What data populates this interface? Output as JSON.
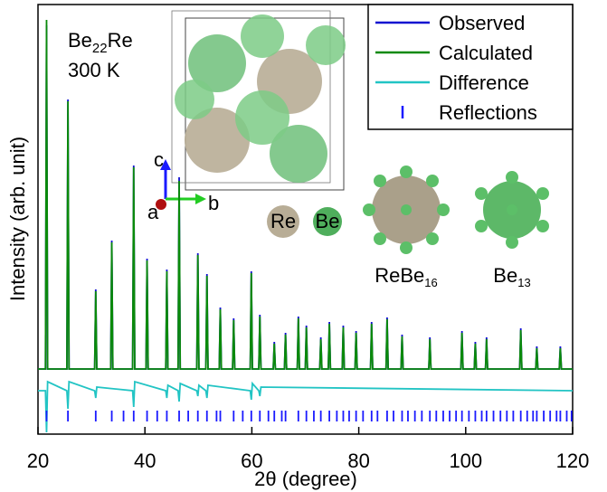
{
  "chart_data": {
    "type": "line",
    "x_label": "2θ (degree)",
    "y_label": "Intensity (arb. unit)",
    "sample_label": [
      "Be",
      "22",
      "Re"
    ],
    "temperature": "300 K",
    "structure_labels": {
      "axis_c": "c",
      "axis_a": "a",
      "axis_b": "b",
      "atom_re": "Re",
      "atom_be": "Be",
      "cluster_1": [
        "ReBe",
        "16"
      ],
      "cluster_2": [
        "Be",
        "13"
      ]
    },
    "xlim": [
      20,
      120
    ],
    "xticks": [
      20,
      40,
      60,
      80,
      100,
      120
    ],
    "ylim": [
      -72,
      403
    ],
    "legend": "upper right",
    "series": [
      {
        "name": "Observed",
        "color": "#1010d0",
        "style": "line",
        "x": [
          20,
          21.4,
          21.6,
          21.8,
          25.4,
          25.6,
          25.8,
          30.6,
          30.8,
          31,
          33.6,
          33.8,
          34,
          37.7,
          37.9,
          38.1,
          40.2,
          40.4,
          40.6,
          43.9,
          44.1,
          44.3,
          46.2,
          46.4,
          46.6,
          49.7,
          49.9,
          50.1,
          51.4,
          51.6,
          51.8,
          53.9,
          54.1,
          54.3,
          56.4,
          56.6,
          56.8,
          59.7,
          59.9,
          60.1,
          61.3,
          61.5,
          61.7,
          64,
          64.2,
          64.4,
          66.1,
          66.3,
          66.5,
          68.5,
          68.7,
          68.9,
          70,
          70.2,
          70.4,
          72.7,
          72.9,
          73.1,
          74.3,
          74.5,
          74.7,
          76.9,
          77.1,
          77.3,
          79.3,
          79.5,
          79.7,
          82.2,
          82.4,
          82.6,
          85.1,
          85.3,
          85.5,
          87.9,
          88.1,
          88.3,
          93.1,
          93.3,
          93.5,
          99.1,
          99.3,
          99.5,
          101.6,
          101.8,
          102,
          103.7,
          103.9,
          104.1,
          110.1,
          110.3,
          110.5,
          113.1,
          113.3,
          113.5,
          117.5,
          117.7,
          117.9,
          120
        ],
        "values": [
          0,
          0,
          380,
          0,
          0,
          298,
          0,
          0,
          88,
          0,
          0,
          142,
          0,
          0,
          225,
          0,
          0,
          122,
          0,
          0,
          110,
          0,
          0,
          212,
          0,
          0,
          128,
          0,
          0,
          105,
          0,
          0,
          68,
          0,
          0,
          56,
          0,
          0,
          108,
          0,
          0,
          60,
          0,
          0,
          30,
          0,
          0,
          40,
          0,
          0,
          58,
          0,
          0,
          48,
          0,
          0,
          35,
          0,
          0,
          52,
          0,
          0,
          48,
          0,
          0,
          42,
          0,
          0,
          52,
          0,
          0,
          57,
          0,
          0,
          38,
          0,
          0,
          35,
          0,
          0,
          42,
          0,
          0,
          30,
          0,
          0,
          35,
          0,
          0,
          45,
          0,
          0,
          25,
          0,
          0,
          25,
          0,
          0
        ]
      },
      {
        "name": "Calculated",
        "color": "#0a8a0a",
        "style": "line",
        "x": [
          20,
          21.4,
          21.6,
          21.8,
          25.4,
          25.6,
          25.8,
          30.6,
          30.8,
          31,
          33.6,
          33.8,
          34,
          37.7,
          37.9,
          38.1,
          40.2,
          40.4,
          40.6,
          43.9,
          44.1,
          44.3,
          46.2,
          46.4,
          46.6,
          49.7,
          49.9,
          50.1,
          51.4,
          51.6,
          51.8,
          53.9,
          54.1,
          54.3,
          56.4,
          56.6,
          56.8,
          59.7,
          59.9,
          60.1,
          61.3,
          61.5,
          61.7,
          64,
          64.2,
          64.4,
          66.1,
          66.3,
          66.5,
          68.5,
          68.7,
          68.9,
          70,
          70.2,
          70.4,
          72.7,
          72.9,
          73.1,
          74.3,
          74.5,
          74.7,
          76.9,
          77.1,
          77.3,
          79.3,
          79.5,
          79.7,
          82.2,
          82.4,
          82.6,
          85.1,
          85.3,
          85.5,
          87.9,
          88.1,
          88.3,
          93.1,
          93.3,
          93.5,
          99.1,
          99.3,
          99.5,
          101.6,
          101.8,
          102,
          103.7,
          103.9,
          104.1,
          110.1,
          110.3,
          110.5,
          113.1,
          113.3,
          113.5,
          117.5,
          117.7,
          117.9,
          120
        ],
        "values": [
          0,
          0,
          386,
          0,
          0,
          296,
          0,
          0,
          86,
          0,
          0,
          140,
          0,
          0,
          223,
          0,
          0,
          120,
          0,
          0,
          108,
          0,
          0,
          208,
          0,
          0,
          126,
          0,
          0,
          103,
          0,
          0,
          66,
          0,
          0,
          54,
          0,
          0,
          106,
          0,
          0,
          58,
          0,
          0,
          28,
          0,
          0,
          38,
          0,
          0,
          56,
          0,
          0,
          46,
          0,
          0,
          33,
          0,
          0,
          50,
          0,
          0,
          46,
          0,
          0,
          40,
          0,
          0,
          50,
          0,
          0,
          55,
          0,
          0,
          36,
          0,
          0,
          33,
          0,
          0,
          40,
          0,
          0,
          28,
          0,
          0,
          33,
          0,
          0,
          43,
          0,
          0,
          23,
          0,
          0,
          23,
          0,
          0
        ]
      },
      {
        "name": "Difference",
        "color": "#22c4c4",
        "style": "line",
        "x": [
          20,
          21.4,
          21.6,
          21.8,
          25.4,
          25.6,
          25.8,
          30.6,
          30.8,
          31,
          37.7,
          37.9,
          38.1,
          43.9,
          44.1,
          44.3,
          46.2,
          46.4,
          46.6,
          49.7,
          49.9,
          50.1,
          51.4,
          51.6,
          51.8,
          59.7,
          59.9,
          60.1,
          61.3,
          61.5,
          61.7,
          120
        ],
        "values": [
          -24,
          -24,
          -70,
          -14,
          -24,
          -44,
          -14,
          -24,
          -32,
          -20,
          -24,
          -42,
          -14,
          -24,
          -32,
          -18,
          -24,
          -36,
          -16,
          -24,
          -30,
          -18,
          -24,
          -32,
          -18,
          -24,
          -34,
          -16,
          -24,
          -30,
          -20,
          -24
        ]
      },
      {
        "name": "Reflections",
        "color": "#1a1aff",
        "style": "ticks",
        "x": [
          21.6,
          25.6,
          30.8,
          33.8,
          36,
          37.9,
          40.4,
          42.3,
          44.1,
          46.4,
          48.1,
          49.9,
          51.6,
          53.4,
          54.1,
          56.6,
          58.3,
          59.9,
          61.5,
          63.1,
          64.2,
          65.6,
          66.3,
          68.7,
          70.2,
          71.6,
          72.9,
          74.5,
          75.9,
          77.1,
          78.2,
          79.5,
          80.8,
          82.4,
          83.5,
          85.3,
          86.5,
          88.1,
          89.2,
          90.5,
          91.8,
          93.3,
          94.5,
          95.8,
          97,
          98.2,
          99.3,
          100.6,
          101.8,
          103,
          103.9,
          105.2,
          106.5,
          107.7,
          108.9,
          110.3,
          111.5,
          112.6,
          113.3,
          114.6,
          115.8,
          117,
          117.7,
          118.9,
          119.8
        ],
        "values": [
          -52,
          -52,
          -52,
          -52,
          -52,
          -52,
          -52,
          -52,
          -52,
          -52,
          -52,
          -52,
          -52,
          -52,
          -52,
          -52,
          -52,
          -52,
          -52,
          -52,
          -52,
          -52,
          -52,
          -52,
          -52,
          -52,
          -52,
          -52,
          -52,
          -52,
          -52,
          -52,
          -52,
          -52,
          -52,
          -52,
          -52,
          -52,
          -52,
          -52,
          -52,
          -52,
          -52,
          -52,
          -52,
          -52,
          -52,
          -52,
          -52,
          -52,
          -52,
          -52,
          -52,
          -52,
          -52,
          -52,
          -52,
          -52,
          -52,
          -52,
          -52,
          -52,
          -52,
          -52,
          -52
        ]
      }
    ]
  }
}
